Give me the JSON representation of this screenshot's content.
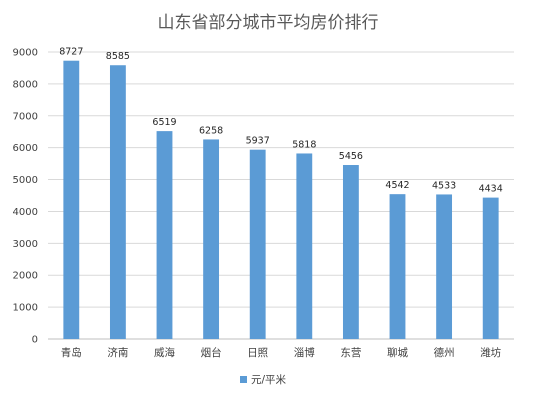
{
  "chart_data": {
    "type": "bar",
    "title": "山东省部分城市平均房价排行",
    "categories": [
      "青岛",
      "济南",
      "威海",
      "烟台",
      "日照",
      "淄博",
      "东营",
      "聊城",
      "德州",
      "潍坊"
    ],
    "series": [
      {
        "name": "元/平米",
        "values": [
          8727,
          8585,
          6519,
          6258,
          5937,
          5818,
          5456,
          4542,
          4533,
          4434
        ],
        "color": "#5b9bd5"
      }
    ],
    "yticks": [
      0,
      1000,
      2000,
      3000,
      4000,
      5000,
      6000,
      7000,
      8000,
      9000
    ],
    "ylim": [
      0,
      9000
    ],
    "grid": true,
    "legend": "bottom",
    "data_labels": true
  }
}
